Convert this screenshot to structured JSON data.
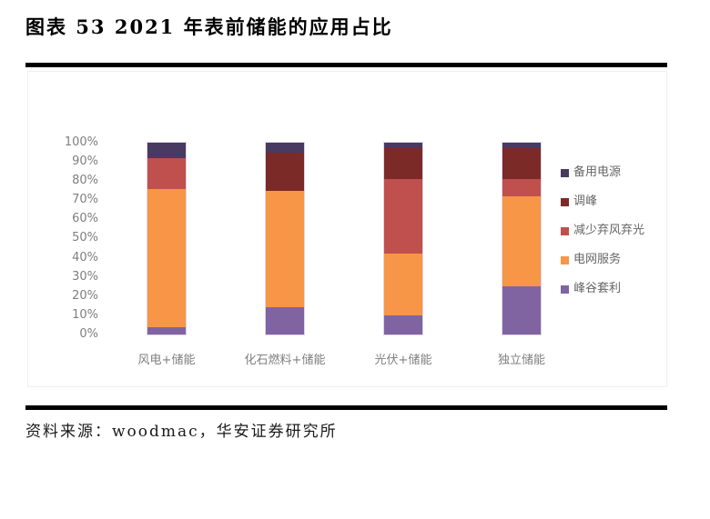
{
  "page": {
    "title": "图表 53 2021 年表前储能的应用占比",
    "source": "资料来源：woodmac，华安证券研究所"
  },
  "chart_data": {
    "type": "bar",
    "stacked": true,
    "title": "图表 53 2021 年表前储能的应用占比",
    "unit": "%",
    "categories": [
      "风电+储能",
      "化石燃料+储能",
      "光伏+储能",
      "独立储能"
    ],
    "series": [
      {
        "key": "backup-power",
        "name": "备用电源",
        "color": "#493a62",
        "values": [
          8,
          5,
          3,
          3
        ]
      },
      {
        "key": "peak-shaving",
        "name": "调峰",
        "color": "#7c2a28",
        "values": [
          0,
          20,
          16,
          16
        ]
      },
      {
        "key": "curtailment-reduction",
        "name": "减少弃风弃光",
        "color": "#c0504d",
        "values": [
          16,
          0,
          39,
          9
        ]
      },
      {
        "key": "grid-services",
        "name": "电网服务",
        "color": "#f79646",
        "values": [
          72,
          61,
          32,
          47
        ]
      },
      {
        "key": "peak-valley-arbitrage",
        "name": "峰谷套利",
        "color": "#8064a2",
        "values": [
          4,
          14,
          10,
          25
        ]
      }
    ],
    "xlabel": "",
    "ylabel": "",
    "ylim": [
      0,
      100
    ],
    "yticks": [
      "100%",
      "90%",
      "80%",
      "70%",
      "60%",
      "50%",
      "40%",
      "30%",
      "20%",
      "10%",
      "0%"
    ],
    "grid": false,
    "legend_position": "right"
  }
}
